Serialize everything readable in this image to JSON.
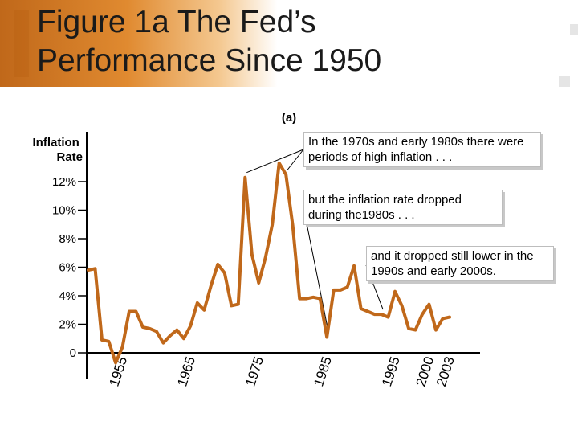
{
  "slide": {
    "title_line1": "Figure 1a  The Fed’s",
    "title_line2": "Performance Since 1950",
    "accent_color": "#c0681a"
  },
  "chart_data": {
    "type": "line",
    "panel_label": "(a)",
    "ylabel": "Inflation\nRate",
    "xlabel": "",
    "series_color": "#c0681a",
    "y_ticks": [
      {
        "value": 12,
        "label": "12%"
      },
      {
        "value": 10,
        "label": "10%"
      },
      {
        "value": 8,
        "label": "8%"
      },
      {
        "value": 6,
        "label": "6%"
      },
      {
        "value": 4,
        "label": "4%"
      },
      {
        "value": 2,
        "label": "2%"
      },
      {
        "value": 0,
        "label": "0"
      }
    ],
    "x_tick_labels": [
      "1955",
      "1965",
      "1975",
      "1985",
      "1995",
      "2000",
      "2003"
    ],
    "x_ticks": [
      1955,
      1965,
      1975,
      1985,
      1995,
      2000,
      2003
    ],
    "xlim": [
      1950,
      2003
    ],
    "ylim": [
      0,
      12
    ],
    "x": [
      1950,
      1951,
      1952,
      1953,
      1954,
      1955,
      1956,
      1957,
      1958,
      1959,
      1960,
      1961,
      1962,
      1963,
      1964,
      1965,
      1966,
      1967,
      1968,
      1969,
      1970,
      1971,
      1972,
      1973,
      1974,
      1975,
      1976,
      1977,
      1978,
      1979,
      1980,
      1981,
      1982,
      1983,
      1984,
      1985,
      1986,
      1987,
      1988,
      1989,
      1990,
      1991,
      1992,
      1993,
      1994,
      1995,
      1996,
      1997,
      1998,
      1999,
      2000,
      2001,
      2002,
      2003
    ],
    "y": [
      5.8,
      5.9,
      0.9,
      0.8,
      -0.7,
      0.4,
      2.9,
      2.9,
      1.8,
      1.7,
      1.5,
      0.7,
      1.2,
      1.6,
      1.0,
      1.9,
      3.5,
      3.0,
      4.7,
      6.2,
      5.6,
      3.3,
      3.4,
      12.3,
      6.9,
      4.9,
      6.7,
      9.0,
      13.3,
      12.5,
      8.9,
      3.8,
      3.8,
      3.9,
      3.8,
      1.1,
      4.4,
      4.4,
      4.6,
      6.1,
      3.1,
      2.9,
      2.7,
      2.7,
      2.5,
      4.3,
      3.3,
      1.7,
      1.6,
      2.7,
      3.4,
      1.6,
      2.4,
      2.5
    ],
    "annotations": [
      {
        "text": "In the 1970s and early 1980s there were periods of high inflation . . .",
        "points_to": [
          [
            1973,
            12.3
          ],
          [
            1979,
            12.5
          ]
        ]
      },
      {
        "text": "but the inflation rate dropped during the1980s . . .",
        "points_to": [
          [
            1985,
            1.1
          ]
        ]
      },
      {
        "text": "and it dropped still lower in the 1990s and early 2000s.",
        "points_to": [
          [
            1993,
            2.7
          ]
        ]
      }
    ]
  }
}
